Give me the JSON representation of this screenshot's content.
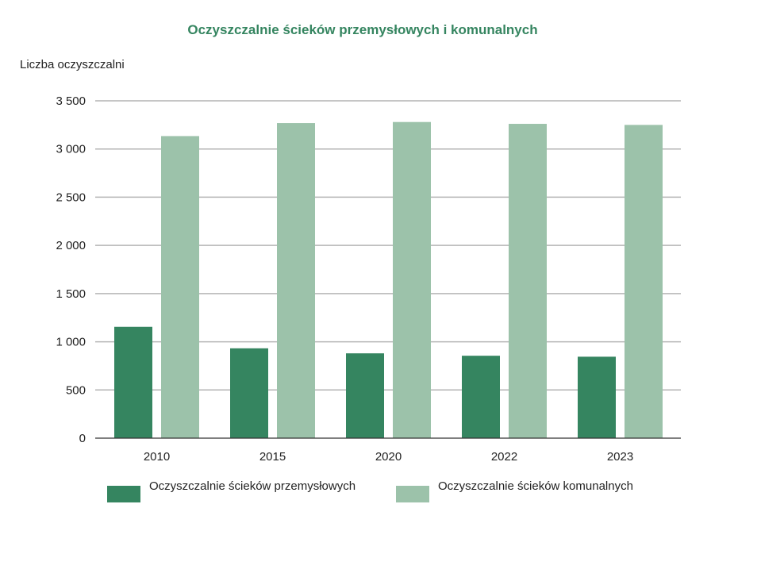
{
  "chart_data": {
    "type": "bar",
    "title": "Oczyszczalnie ścieków przemysłowych i komunalnych",
    "xlabel": "",
    "ylabel": "Liczba oczyszczalni",
    "ylim": [
      0,
      3500
    ],
    "yticks": [
      0,
      500,
      1000,
      1500,
      2000,
      2500,
      3000,
      3500
    ],
    "ytick_labels": [
      "0",
      "500",
      "1 000",
      "1 500",
      "2 000",
      "2 500",
      "3 000",
      "3 500"
    ],
    "categories": [
      "2010",
      "2015",
      "2020",
      "2022",
      "2023"
    ],
    "grid": true,
    "legend_position": "bottom",
    "series": [
      {
        "name": "Oczyszczalnie ścieków przemysłowych",
        "color": "#358560",
        "values": [
          1155,
          932,
          880,
          855,
          845
        ]
      },
      {
        "name": "Oczyszczalnie ścieków komunalnych",
        "color": "#9cc2aa",
        "values": [
          3134,
          3269,
          3280,
          3261,
          3250
        ]
      }
    ]
  }
}
